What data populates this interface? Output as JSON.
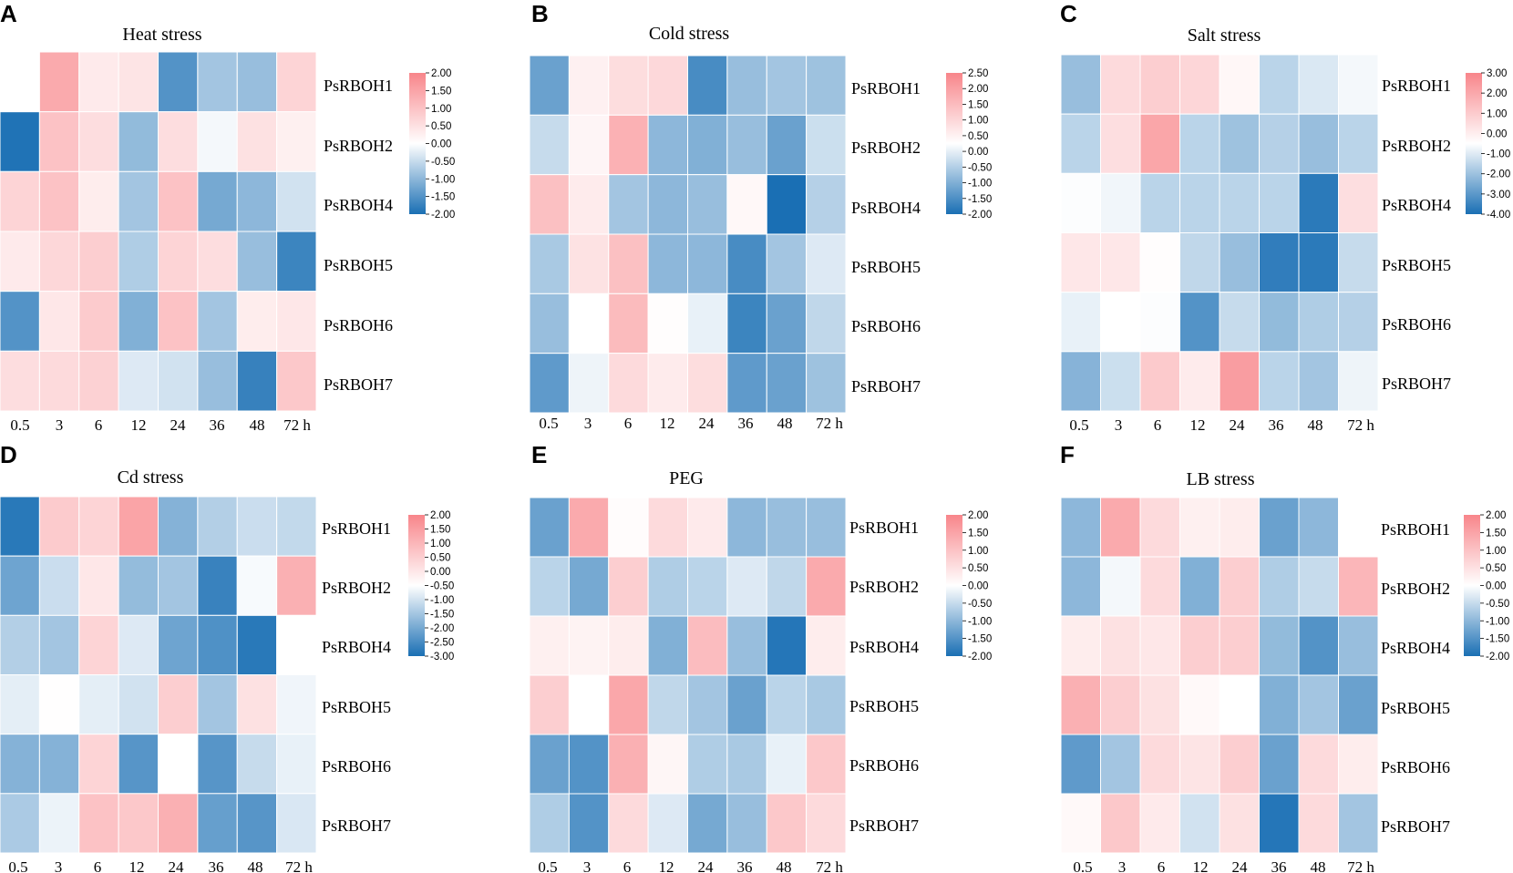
{
  "figure": {
    "colors": {
      "low": "#1a6fb4",
      "mid": "#ffffff",
      "high": "#f8858a"
    }
  },
  "chart_data": [
    {
      "type": "heatmap",
      "letter": "A",
      "title": "Heat stress",
      "rows": [
        "PsRBOH1",
        "PsRBOH2",
        "PsRBOH4",
        "PsRBOH5",
        "PsRBOH6",
        "PsRBOH7"
      ],
      "columns": [
        "0.5",
        "3",
        "6",
        "12",
        "24",
        "36",
        "48",
        "72 h"
      ],
      "values": [
        [
          0.0,
          1.4,
          0.35,
          0.45,
          -1.5,
          -0.8,
          -0.9,
          0.7
        ],
        [
          -1.95,
          1.0,
          0.55,
          -0.95,
          0.55,
          -0.1,
          0.5,
          0.25
        ],
        [
          0.7,
          1.0,
          0.3,
          -0.8,
          1.0,
          -1.2,
          -1.0,
          -0.4
        ],
        [
          0.35,
          0.65,
          0.8,
          -0.7,
          0.7,
          0.55,
          -0.9,
          -1.7
        ],
        [
          -1.5,
          0.4,
          0.85,
          -1.1,
          1.0,
          -0.8,
          0.3,
          0.4
        ],
        [
          0.55,
          0.6,
          0.75,
          -0.3,
          -0.4,
          -0.9,
          -1.75,
          0.9
        ]
      ],
      "legend_ticks": [
        "2.00",
        "1.50",
        "1.00",
        "0.50",
        "0.00",
        "-0.50",
        "-1.00",
        "-1.50",
        "-2.00"
      ],
      "legend_range": [
        -2,
        2
      ]
    },
    {
      "type": "heatmap",
      "letter": "B",
      "title": "Cold stress",
      "rows": [
        "PsRBOH1",
        "PsRBOH2",
        "PsRBOH4",
        "PsRBOH5",
        "PsRBOH6",
        "PsRBOH7"
      ],
      "columns": [
        "0.5",
        "3",
        "6",
        "12",
        "24",
        "36",
        "48",
        "72 h"
      ],
      "values": [
        [
          -1.3,
          0.3,
          0.7,
          0.8,
          -1.6,
          -0.9,
          -0.8,
          -0.85
        ],
        [
          -0.5,
          0.2,
          1.6,
          -1.0,
          -1.1,
          -0.9,
          -1.3,
          -0.45
        ],
        [
          1.3,
          0.4,
          -0.8,
          -1.0,
          -0.9,
          0.15,
          -2.0,
          -0.65
        ],
        [
          -0.75,
          0.6,
          1.3,
          -1.0,
          -1.0,
          -1.6,
          -0.8,
          -0.3
        ],
        [
          -0.9,
          0.0,
          1.4,
          0.05,
          -0.2,
          -1.7,
          -1.3,
          -0.55
        ],
        [
          -1.4,
          -0.15,
          0.75,
          0.4,
          0.7,
          -1.4,
          -1.3,
          -0.85
        ]
      ],
      "legend_ticks": [
        "2.50",
        "2.00",
        "1.50",
        "1.00",
        "0.50",
        "0.00",
        "-0.50",
        "-1.00",
        "-1.50",
        "-2.00"
      ],
      "legend_range": [
        -2,
        2.5
      ]
    },
    {
      "type": "heatmap",
      "letter": "C",
      "title": "Salt stress",
      "rows": [
        "PsRBOH1",
        "PsRBOH2",
        "PsRBOH4",
        "PsRBOH5",
        "PsRBOH6",
        "PsRBOH7"
      ],
      "columns": [
        "0.5",
        "3",
        "6",
        "12",
        "24",
        "36",
        "48",
        "72 h"
      ],
      "values": [
        [
          -1.8,
          0.9,
          1.2,
          1.0,
          0.2,
          -1.2,
          -0.65,
          -0.2
        ],
        [
          -1.2,
          0.8,
          2.2,
          -1.2,
          -1.7,
          -1.3,
          -1.8,
          -1.2
        ],
        [
          -0.05,
          -0.25,
          -1.2,
          -1.2,
          -1.2,
          -1.2,
          -3.7,
          0.8
        ],
        [
          0.6,
          0.6,
          0.05,
          -1.1,
          -1.8,
          -3.6,
          -3.7,
          -1.0
        ],
        [
          -0.4,
          0.0,
          -0.05,
          -3.0,
          -1.0,
          -1.9,
          -1.4,
          -1.3
        ],
        [
          -2.1,
          -0.9,
          1.3,
          0.5,
          2.4,
          -1.2,
          -1.6,
          -0.3
        ]
      ],
      "legend_ticks": [
        "3.00",
        "2.00",
        "1.00",
        "0.00",
        "-1.00",
        "-2.00",
        "-3.00",
        "-4.00"
      ],
      "legend_range": [
        -4,
        3
      ]
    },
    {
      "type": "heatmap",
      "letter": "D",
      "title": "Cd stress",
      "rows": [
        "PsRBOH1",
        "PsRBOH2",
        "PsRBOH4",
        "PsRBOH5",
        "PsRBOH6",
        "PsRBOH7"
      ],
      "columns": [
        "0.5",
        "3",
        "6",
        "12",
        "24",
        "36",
        "48",
        "72 h"
      ],
      "values": [
        [
          -2.8,
          0.85,
          0.7,
          1.5,
          -1.6,
          -1.0,
          -0.7,
          -0.8
        ],
        [
          -1.9,
          -0.7,
          0.4,
          -1.4,
          -1.2,
          -2.6,
          -0.1,
          1.3
        ],
        [
          -1.0,
          -1.2,
          0.7,
          -0.45,
          -1.9,
          -2.3,
          -2.8,
          0.0
        ],
        [
          -0.35,
          0.02,
          -0.35,
          -0.6,
          0.8,
          -1.2,
          0.5,
          -0.2
        ],
        [
          -1.6,
          -1.6,
          0.7,
          -2.2,
          0.0,
          -2.2,
          -0.75,
          -0.3
        ],
        [
          -1.1,
          -0.25,
          1.0,
          0.9,
          1.3,
          -2.0,
          -2.2,
          -0.5
        ]
      ],
      "legend_ticks": [
        "2.00",
        "1.50",
        "1.00",
        "0.50",
        "0.00",
        "-0.50",
        "-1.00",
        "-1.50",
        "-2.00",
        "-2.50",
        "-3.00"
      ],
      "legend_range": [
        -3,
        2
      ]
    },
    {
      "type": "heatmap",
      "letter": "E",
      "title": "PEG",
      "rows": [
        "PsRBOH1",
        "PsRBOH2",
        "PsRBOH4",
        "PsRBOH5",
        "PsRBOH6",
        "PsRBOH7"
      ],
      "columns": [
        "0.5",
        "3",
        "6",
        "12",
        "24",
        "36",
        "48",
        "72 h"
      ],
      "values": [
        [
          -1.3,
          1.4,
          0.05,
          0.6,
          0.35,
          -1.0,
          -0.9,
          -0.9
        ],
        [
          -0.6,
          -1.2,
          0.8,
          -0.7,
          -0.6,
          -0.3,
          -0.55,
          1.4
        ],
        [
          0.25,
          0.2,
          0.3,
          -1.1,
          1.1,
          -0.9,
          -1.9,
          0.3
        ],
        [
          0.8,
          0.0,
          1.45,
          -0.55,
          -0.8,
          -1.3,
          -0.6,
          -0.75
        ],
        [
          -1.3,
          -1.5,
          1.3,
          0.15,
          -0.7,
          -0.75,
          -0.2,
          0.9
        ],
        [
          -0.7,
          -1.5,
          0.6,
          -0.3,
          -1.2,
          -0.9,
          0.9,
          0.6
        ]
      ],
      "legend_ticks": [
        "2.00",
        "1.50",
        "1.00",
        "0.50",
        "0.00",
        "-0.50",
        "-1.00",
        "-1.50",
        "-2.00"
      ],
      "legend_range": [
        -2,
        2
      ]
    },
    {
      "type": "heatmap",
      "letter": "F",
      "title": "LB stress",
      "rows": [
        "PsRBOH1",
        "PsRBOH2",
        "PsRBOH4",
        "PsRBOH5",
        "PsRBOH6",
        "PsRBOH7"
      ],
      "columns": [
        "0.5",
        "3",
        "6",
        "12",
        "24",
        "36",
        "48",
        "72 h"
      ],
      "values": [
        [
          -1.0,
          1.4,
          0.6,
          0.25,
          0.3,
          -1.3,
          -1.0,
          0.0
        ],
        [
          -1.0,
          -0.1,
          0.6,
          -1.1,
          0.8,
          -0.7,
          -0.5,
          1.2
        ],
        [
          0.3,
          0.5,
          0.4,
          0.8,
          0.8,
          -0.95,
          -1.5,
          -0.9
        ],
        [
          1.3,
          0.8,
          0.5,
          0.1,
          0.0,
          -1.1,
          -0.8,
          -1.3
        ],
        [
          -1.4,
          -0.8,
          0.6,
          0.45,
          0.8,
          -1.3,
          0.6,
          0.3
        ],
        [
          0.1,
          0.9,
          0.35,
          -0.4,
          0.5,
          -1.9,
          0.6,
          -0.8
        ]
      ],
      "legend_ticks": [
        "2.00",
        "1.50",
        "1.00",
        "0.50",
        "0.00",
        "-0.50",
        "-1.00",
        "-1.50",
        "-2.00"
      ],
      "legend_range": [
        -2,
        2
      ]
    }
  ]
}
